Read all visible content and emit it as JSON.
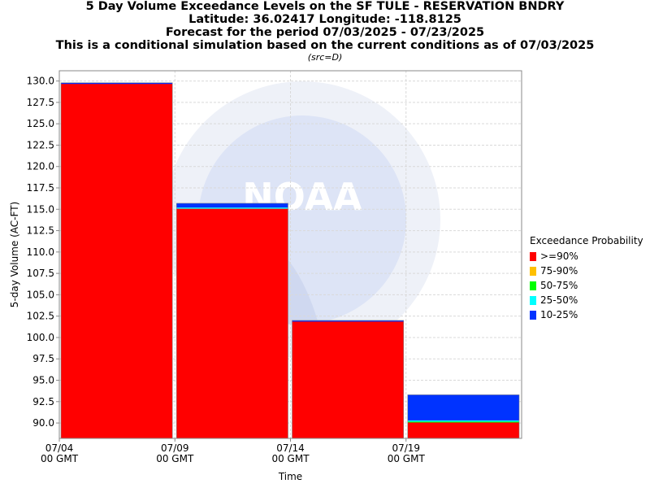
{
  "chart_data": {
    "type": "bar",
    "title_lines": [
      "5 Day Volume Exceedance Levels on the SF TULE - RESERVATION BNDRY",
      "Latitude: 36.02417 Longitude: -118.8125",
      "Forecast for the period 07/03/2025 - 07/23/2025",
      "This is a conditional simulation based on the current conditions as of 07/03/2025"
    ],
    "subtitle": "(src=D)",
    "xlabel": "Time",
    "ylabel": "5-day Volume (AC-FT)",
    "ylim": [
      88.2,
      131.2
    ],
    "xlim": [
      "2025-07-04",
      "2025-07-24"
    ],
    "y_ticks": [
      130.0,
      127.5,
      125.0,
      122.5,
      120.0,
      117.5,
      115.0,
      112.5,
      110.0,
      107.5,
      105.0,
      102.5,
      100.0,
      97.5,
      95.0,
      92.5,
      90.0
    ],
    "x_ticks": [
      {
        "date": "2025-07-04",
        "line1": "07/04",
        "line2": "00 GMT"
      },
      {
        "date": "2025-07-09",
        "line1": "07/09",
        "line2": "00 GMT"
      },
      {
        "date": "2025-07-14",
        "line1": "07/14",
        "line2": "00 GMT"
      },
      {
        "date": "2025-07-19",
        "line1": "07/19",
        "line2": "00 GMT"
      }
    ],
    "grid": true,
    "legend_position": "right",
    "legend_title": "Exceedance Probability",
    "series": [
      {
        "name": ">=90%",
        "color": "#ff0000"
      },
      {
        "name": "75-90%",
        "color": "#ffc000"
      },
      {
        "name": "50-75%",
        "color": "#00ff00"
      },
      {
        "name": "25-50%",
        "color": "#00ffff"
      },
      {
        "name": "10-25%",
        "color": "#0033ff"
      }
    ],
    "bars": [
      {
        "start": "2025-07-04",
        "end": "2025-07-09",
        "levels": [
          129.7,
          129.7,
          129.7,
          129.7,
          129.8
        ]
      },
      {
        "start": "2025-07-09",
        "end": "2025-07-14",
        "levels": [
          115.1,
          115.1,
          115.1,
          115.2,
          115.7
        ]
      },
      {
        "start": "2025-07-14",
        "end": "2025-07-19",
        "levels": [
          101.9,
          101.9,
          101.9,
          101.9,
          102.0
        ]
      },
      {
        "start": "2025-07-19",
        "end": "2025-07-24",
        "levels": [
          90.1,
          90.1,
          90.2,
          90.3,
          93.3
        ]
      }
    ],
    "watermark": "NOAA"
  }
}
